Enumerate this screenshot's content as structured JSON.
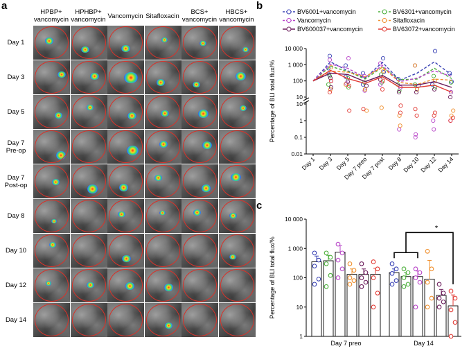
{
  "panel_a": {
    "letter": "a",
    "columns": [
      "HPBP+\nvancomycin",
      "HPHBP+\nvancomycin",
      "Vancomycin",
      "Sitafloxacin",
      "BCS+\nvancomycin",
      "HBCS+\nvancomycin"
    ],
    "rows": [
      "Day 1",
      "Day 3",
      "Day 5",
      "Day 7\nPre-op",
      "Day 7\nPost-op",
      "Day 8",
      "Day 10",
      "Day 12",
      "Day 14"
    ]
  },
  "colors": {
    "BV6001": "#3b44b5",
    "Vancomycin": "#b846c8",
    "BV600037": "#6a1b5a",
    "BV6301": "#4caf3c",
    "Sitafloxacin": "#f0902e",
    "BV63072": "#e23b35",
    "ring": "#d8322a"
  },
  "chart_data": [
    {
      "panel": "b",
      "type": "line",
      "ylabel": "Percentage of BLI total flux/%",
      "yscale": "log",
      "categories": [
        "Day 1",
        "Day 3",
        "Day 5",
        "Day 7 preo",
        "Day 7 post",
        "Day 8",
        "Day 10",
        "Day 12",
        "Day 14"
      ],
      "ytick_labels_upper": [
        "10 000",
        "1 000",
        "100",
        "10"
      ],
      "ytick_labels_lower": [
        "10",
        "1",
        "0.1",
        "0.01"
      ],
      "legend": [
        {
          "name": "BV6001+vancomycin",
          "color": "#3b44b5",
          "dash": true
        },
        {
          "name": "BV6301+vancomycin",
          "color": "#4caf3c",
          "dash": true
        },
        {
          "name": "Vancomycin",
          "color": "#b846c8",
          "dash": true
        },
        {
          "name": "Sitafloxacin",
          "color": "#f0902e",
          "dash": true
        },
        {
          "name": "BV600037+vancomycin",
          "color": "#6a1b5a",
          "dash": false
        },
        {
          "name": "BV63072+vancomycin",
          "color": "#e23b35",
          "dash": false
        }
      ],
      "series": [
        {
          "name": "BV6001+vancomycin",
          "color": "#3b44b5",
          "dash": true,
          "values": [
            100,
            1500,
            420,
            150,
            1400,
            110,
            300,
            1500,
            230
          ]
        },
        {
          "name": "BV6301+vancomycin",
          "color": "#4caf3c",
          "dash": true,
          "values": [
            100,
            800,
            380,
            130,
            700,
            120,
            130,
            600,
            140
          ]
        },
        {
          "name": "Vancomycin",
          "color": "#b846c8",
          "dash": true,
          "values": [
            100,
            1100,
            600,
            160,
            900,
            90,
            150,
            420,
            190
          ]
        },
        {
          "name": "Sitafloxacin",
          "color": "#f0902e",
          "dash": true,
          "values": [
            100,
            400,
            350,
            180,
            700,
            80,
            60,
            130,
            110
          ]
        },
        {
          "name": "BV600037+vancomycin",
          "color": "#6a1b5a",
          "dash": false,
          "values": [
            100,
            300,
            250,
            90,
            220,
            55,
            55,
            90,
            40
          ]
        },
        {
          "name": "BV63072+vancomycin",
          "color": "#e23b35",
          "dash": false,
          "values": [
            100,
            450,
            140,
            70,
            180,
            40,
            40,
            55,
            20
          ]
        }
      ],
      "points": [
        {
          "color": "#3b44b5",
          "values": [
            [
              1,
              3500
            ],
            [
              1,
              600
            ],
            [
              1,
              250
            ],
            [
              2,
              900
            ],
            [
              2,
              180
            ],
            [
              3,
              300
            ],
            [
              3,
              60
            ],
            [
              4,
              2500
            ],
            [
              4,
              350
            ],
            [
              5,
              130
            ],
            [
              5,
              40
            ],
            [
              6,
              900
            ],
            [
              6,
              50
            ],
            [
              7,
              7000
            ],
            [
              7,
              60
            ],
            [
              8,
              300
            ],
            [
              8,
              90
            ]
          ]
        },
        {
          "color": "#4caf3c",
          "values": [
            [
              1,
              200
            ],
            [
              1,
              60
            ],
            [
              2,
              150
            ],
            [
              2,
              40
            ],
            [
              3,
              80
            ],
            [
              3,
              30
            ],
            [
              4,
              250
            ],
            [
              4,
              80
            ],
            [
              5,
              60
            ],
            [
              5,
              25
            ],
            [
              6,
              60
            ],
            [
              6,
              30
            ],
            [
              7,
              200
            ],
            [
              7,
              40
            ],
            [
              8,
              80
            ],
            [
              8,
              20
            ]
          ]
        },
        {
          "color": "#b846c8",
          "values": [
            [
              1,
              2000
            ],
            [
              1,
              100
            ],
            [
              2,
              2500
            ],
            [
              2,
              70
            ],
            [
              3,
              200
            ],
            [
              3,
              25
            ],
            [
              4,
              1200
            ],
            [
              4,
              60
            ],
            [
              5,
              40
            ],
            [
              5,
              0.3
            ],
            [
              6,
              0.15
            ],
            [
              6,
              0.1
            ],
            [
              7,
              0.3
            ],
            [
              7,
              1
            ],
            [
              8,
              20
            ],
            [
              8,
              1
            ]
          ]
        },
        {
          "color": "#f0902e",
          "values": [
            [
              1,
              700
            ],
            [
              1,
              30
            ],
            [
              2,
              60
            ],
            [
              3,
              4
            ],
            [
              3,
              30
            ],
            [
              4,
              6
            ],
            [
              4,
              400
            ],
            [
              5,
              2
            ],
            [
              5,
              0.5
            ],
            [
              6,
              900
            ],
            [
              6,
              30
            ],
            [
              7,
              100
            ],
            [
              8,
              4
            ],
            [
              8,
              2
            ]
          ]
        },
        {
          "color": "#6a1b5a",
          "values": [
            [
              1,
              150
            ],
            [
              1,
              40
            ],
            [
              2,
              90
            ],
            [
              3,
              50
            ],
            [
              4,
              120
            ],
            [
              5,
              20
            ],
            [
              6,
              20
            ],
            [
              7,
              30
            ],
            [
              8,
              10
            ]
          ]
        },
        {
          "color": "#e23b35",
          "values": [
            [
              1,
              100
            ],
            [
              1,
              20
            ],
            [
              2,
              4
            ],
            [
              2,
              50
            ],
            [
              3,
              5
            ],
            [
              4,
              100
            ],
            [
              4,
              30
            ],
            [
              5,
              8
            ],
            [
              5,
              3
            ],
            [
              6,
              5
            ],
            [
              6,
              2
            ],
            [
              7,
              3
            ],
            [
              7,
              2
            ],
            [
              8,
              1.5
            ],
            [
              8,
              1
            ]
          ]
        }
      ]
    },
    {
      "panel": "c",
      "type": "bar",
      "ylabel": "Percentage of BLI total flux/%",
      "yscale": "log",
      "categories": [
        "Day 7 preo",
        "Day 14"
      ],
      "ytick_labels": [
        "10 000",
        "1 000",
        "100",
        "10",
        "1"
      ],
      "significance": "*",
      "series": [
        {
          "name": "BV6001+vancomycin",
          "color": "#3b44b5",
          "values": [
            350,
            150
          ],
          "err": [
            200,
            50
          ],
          "points": [
            [
              700,
              400,
              250,
              90,
              60
            ],
            [
              300,
              200,
              140,
              80,
              60
            ]
          ]
        },
        {
          "name": "BV6301+vancomycin",
          "color": "#4caf3c",
          "values": [
            380,
            110
          ],
          "err": [
            200,
            40
          ],
          "points": [
            [
              700,
              500,
              300,
              120,
              50
            ],
            [
              200,
              150,
              100,
              60,
              50
            ]
          ]
        },
        {
          "name": "Vancomycin",
          "color": "#b846c8",
          "values": [
            750,
            110
          ],
          "err": [
            500,
            60
          ],
          "points": [
            [
              1400,
              700,
              400,
              200,
              100
            ],
            [
              200,
              150,
              100,
              70,
              10
            ]
          ]
        },
        {
          "name": "Sitafloxacin",
          "color": "#f0902e",
          "values": [
            130,
            90
          ],
          "err": [
            70,
            300
          ],
          "points": [
            [
              300,
              180,
              100,
              80,
              60
            ],
            [
              800,
              200,
              70,
              20,
              10
            ]
          ]
        },
        {
          "name": "BV600037+vancomycin",
          "color": "#6a1b5a",
          "values": [
            130,
            25
          ],
          "err": [
            70,
            15
          ],
          "points": [
            [
              300,
              150,
              100,
              70,
              50
            ],
            [
              60,
              30,
              20,
              15,
              10
            ]
          ]
        },
        {
          "name": "BV63072+vancomycin",
          "color": "#e23b35",
          "values": [
            130,
            11
          ],
          "err": [
            80,
            15
          ],
          "points": [
            [
              350,
              200,
              100,
              30,
              10
            ],
            [
              35,
              20,
              8,
              3,
              1
            ]
          ]
        }
      ]
    }
  ]
}
